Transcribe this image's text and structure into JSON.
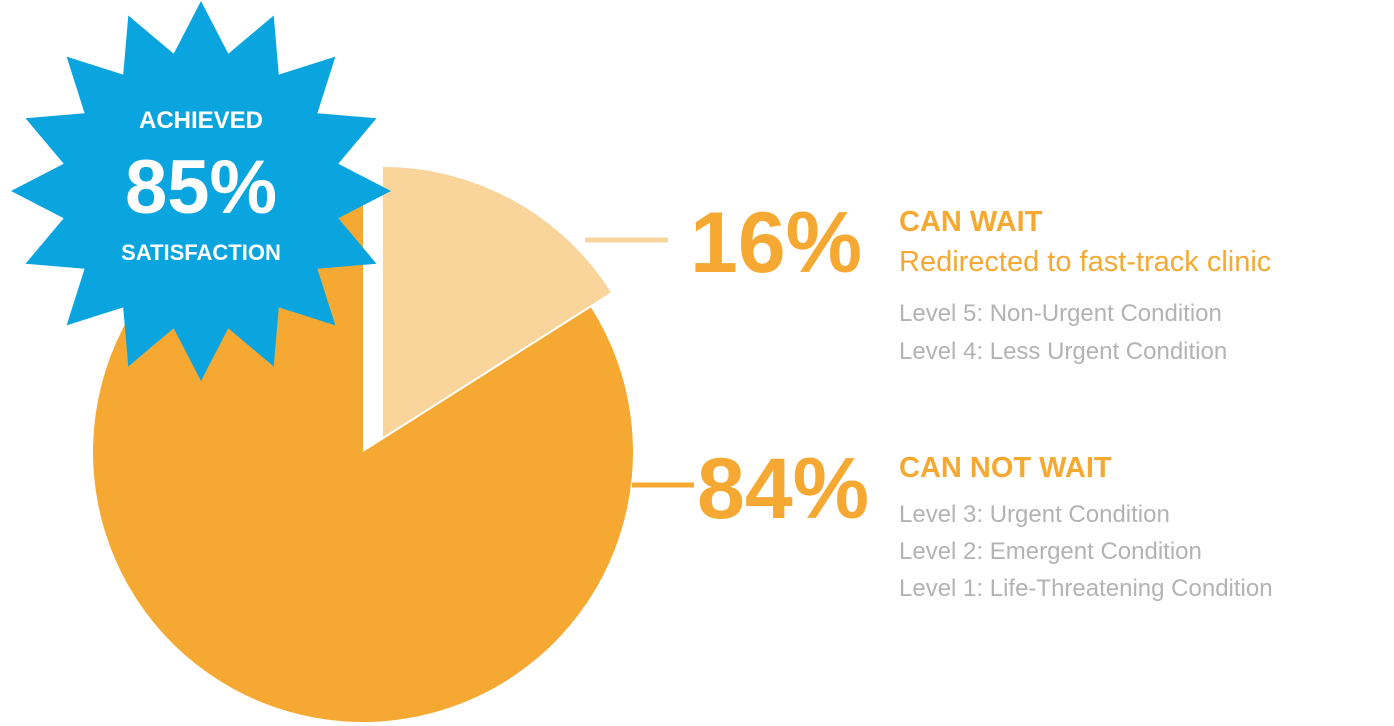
{
  "chart_data": {
    "type": "pie",
    "title": "",
    "slices": [
      {
        "label": "CAN NOT WAIT",
        "value": 84,
        "value_label": "84%",
        "color": "#f5a932"
      },
      {
        "label": "CAN WAIT",
        "value": 16,
        "value_label": "16%",
        "color": "#f9d59b",
        "exploded": true
      }
    ]
  },
  "legend": {
    "can_wait": {
      "percent": "16%",
      "title": "CAN WAIT",
      "subtitle": "Redirected to fast-track clinic",
      "levels": [
        "Level 5: Non-Urgent Condition",
        "Level 4: Less Urgent Condition"
      ]
    },
    "can_not_wait": {
      "percent": "84%",
      "title": "CAN NOT WAIT",
      "levels": [
        "Level 3: Urgent Condition",
        "Level 2: Emergent Condition",
        "Level 1: Life-Threatening Condition"
      ]
    }
  },
  "badge": {
    "line1": "ACHIEVED",
    "line2": "85%",
    "line3": "SATISFACTION",
    "color": "#0aa5df"
  },
  "colors": {
    "main": "#f5a932",
    "light": "#f9d59b",
    "gray_text": "#b3b3b3"
  }
}
